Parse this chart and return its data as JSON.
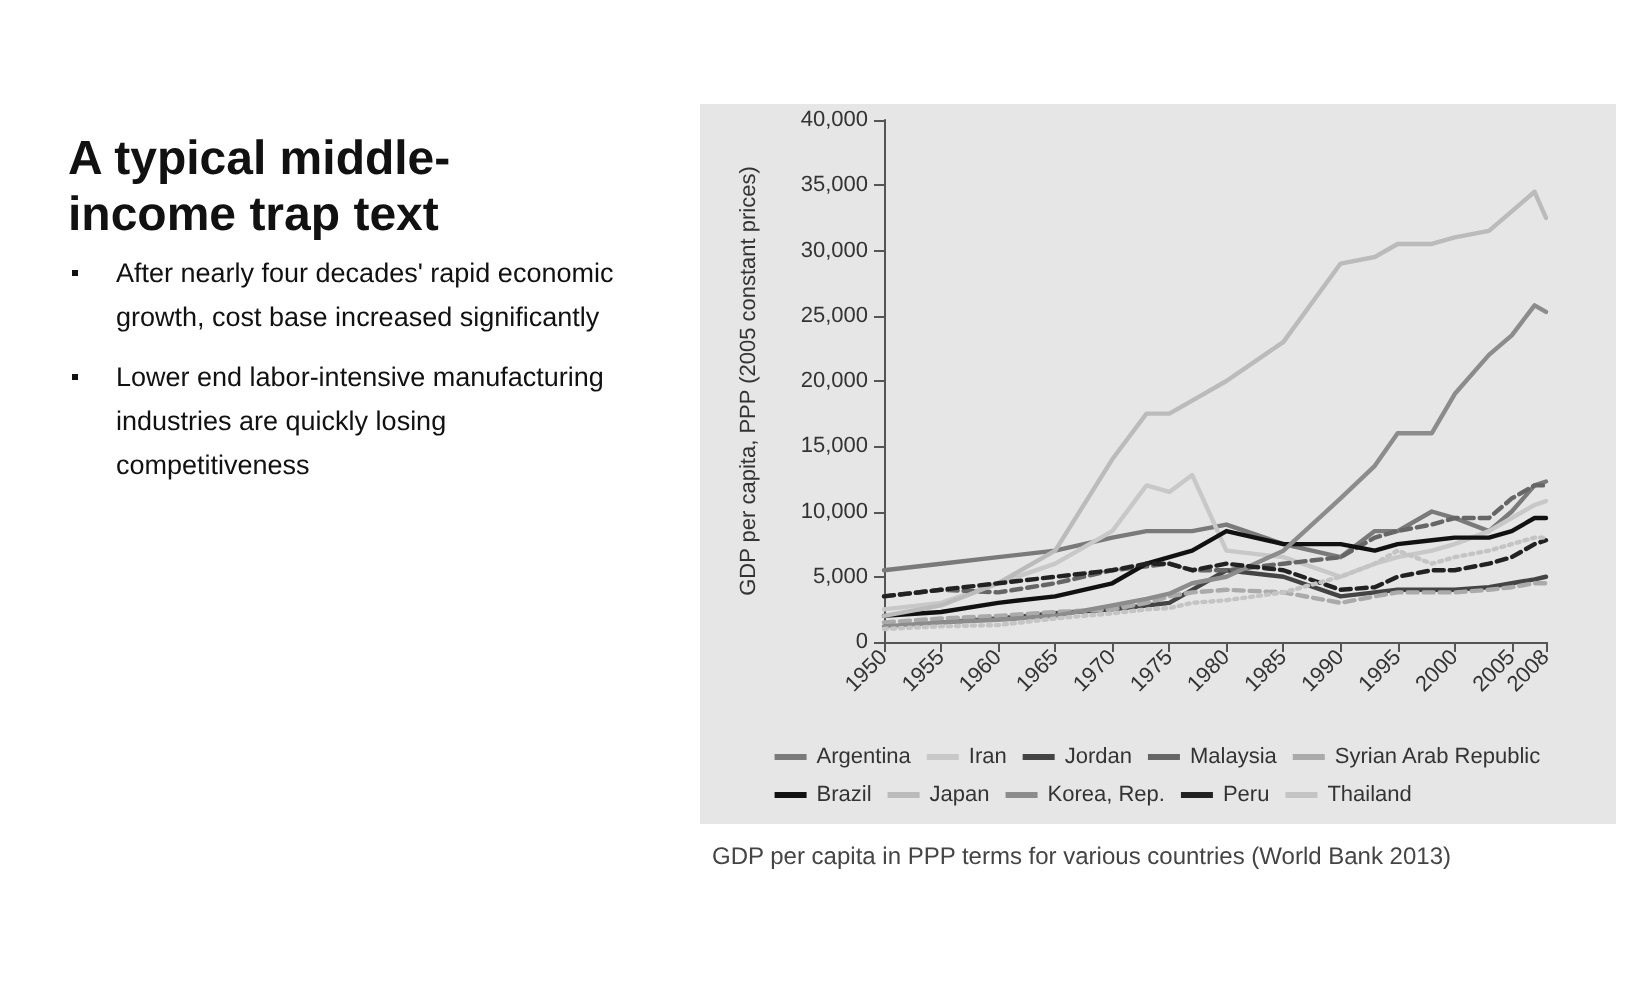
{
  "chart_data": {
    "type": "line",
    "title": "A typical middle-income trap text",
    "ylabel": "GDP per capita, PPP (2005 constant prices)",
    "annotations": [
      "After nearly four decades' rapid economic growth, cost base increased significantly",
      "Lower end labor-intensive manufacturing industries are quickly losing competitiveness",
      "GDP per capita in PPP terms for various countries (World Bank 2013)"
    ],
    "x": [
      1950,
      1955,
      1960,
      1965,
      1970,
      1973,
      1975,
      1977,
      1980,
      1985,
      1990,
      1993,
      1995,
      1998,
      2000,
      2003,
      2005,
      2007,
      2008
    ],
    "xlim": [
      1950,
      2008
    ],
    "xticks": [
      1950,
      1955,
      1960,
      1965,
      1970,
      1975,
      1980,
      1985,
      1990,
      1995,
      2000,
      2005,
      2008
    ],
    "ylim": [
      0,
      40000
    ],
    "yticks": [
      0,
      {
        "value": 5000,
        "label": "5,000"
      },
      {
        "value": 10000,
        "label": "10,000"
      },
      {
        "value": 15000,
        "label": "15,000"
      },
      {
        "value": 20000,
        "label": "20,000"
      },
      {
        "value": 25000,
        "label": "25,000"
      },
      {
        "value": 30000,
        "label": "30,000"
      },
      {
        "value": 35000,
        "label": "35,000"
      },
      {
        "value": 40000,
        "label": "40,000"
      }
    ],
    "grid": false,
    "marker": "none",
    "legend": "bottom",
    "series": [
      {
        "name": "Argentina",
        "color": "#7a7a7a",
        "line_style": "solid",
        "values": [
          5500,
          6000,
          6500,
          7000,
          8000,
          8500,
          8500,
          8500,
          9000,
          7500,
          6500,
          8500,
          8500,
          10000,
          9500,
          8500,
          10000,
          12000,
          12300
        ]
      },
      {
        "name": "Iran",
        "color": "#c8c8c8",
        "line_style": "solid",
        "values": [
          2500,
          3000,
          4500,
          6000,
          8500,
          12000,
          11500,
          12800,
          7000,
          6500,
          5000,
          6000,
          6500,
          7000,
          7500,
          8500,
          9500,
          10500,
          10800
        ]
      },
      {
        "name": "Jordan",
        "color": "#444444",
        "line_style": "solid",
        "values": [
          null,
          1500,
          1800,
          2200,
          2500,
          2800,
          3000,
          4000,
          5500,
          5000,
          3500,
          3800,
          4000,
          4000,
          4000,
          4200,
          4500,
          4800,
          5000
        ]
      },
      {
        "name": "Malaysia",
        "color": "#666666",
        "line_style": "dashed",
        "values": [
          3500,
          4000,
          3800,
          4500,
          5500,
          5800,
          6000,
          5500,
          5500,
          6000,
          6500,
          8000,
          8500,
          9000,
          9500,
          9500,
          11000,
          12000,
          12000
        ]
      },
      {
        "name": "Syrian Arab Republic",
        "color": "#aaaaaa",
        "line_style": "dashed",
        "values": [
          1500,
          1800,
          2000,
          2300,
          2500,
          3000,
          3500,
          3800,
          4000,
          3800,
          3000,
          3500,
          3800,
          3800,
          3800,
          4000,
          4200,
          4500,
          4500
        ]
      },
      {
        "name": "Brazil",
        "color": "#111111",
        "line_style": "solid",
        "values": [
          2000,
          2300,
          3000,
          3500,
          4500,
          6000,
          6500,
          7000,
          8500,
          7500,
          7500,
          7000,
          7500,
          7800,
          8000,
          8000,
          8500,
          9500,
          9500
        ]
      },
      {
        "name": "Japan",
        "color": "#bbbbbb",
        "line_style": "solid",
        "values": [
          2000,
          2800,
          4500,
          7000,
          14000,
          17500,
          17500,
          18500,
          20000,
          23000,
          29000,
          29500,
          30500,
          30500,
          31000,
          31500,
          33000,
          34500,
          32500
        ]
      },
      {
        "name": "Korea, Rep.",
        "color": "#8c8c8c",
        "line_style": "solid",
        "values": [
          1200,
          1500,
          1700,
          2000,
          2800,
          3300,
          3700,
          4500,
          5000,
          7000,
          11000,
          13500,
          16000,
          16000,
          19000,
          22000,
          23500,
          25800,
          25300
        ]
      },
      {
        "name": "Peru",
        "color": "#222222",
        "line_style": "dashed",
        "values": [
          3500,
          4000,
          4500,
          5000,
          5500,
          6000,
          6000,
          5500,
          6000,
          5500,
          4000,
          4200,
          5000,
          5500,
          5500,
          6000,
          6500,
          7500,
          7800
        ]
      },
      {
        "name": "Thailand",
        "color": "#c4c4c4",
        "line_style": "dotted",
        "values": [
          1000,
          1200,
          1300,
          1800,
          2200,
          2500,
          2600,
          3000,
          3200,
          3800,
          5000,
          6000,
          7000,
          6000,
          6500,
          7000,
          7500,
          8000,
          8000
        ]
      }
    ]
  }
}
